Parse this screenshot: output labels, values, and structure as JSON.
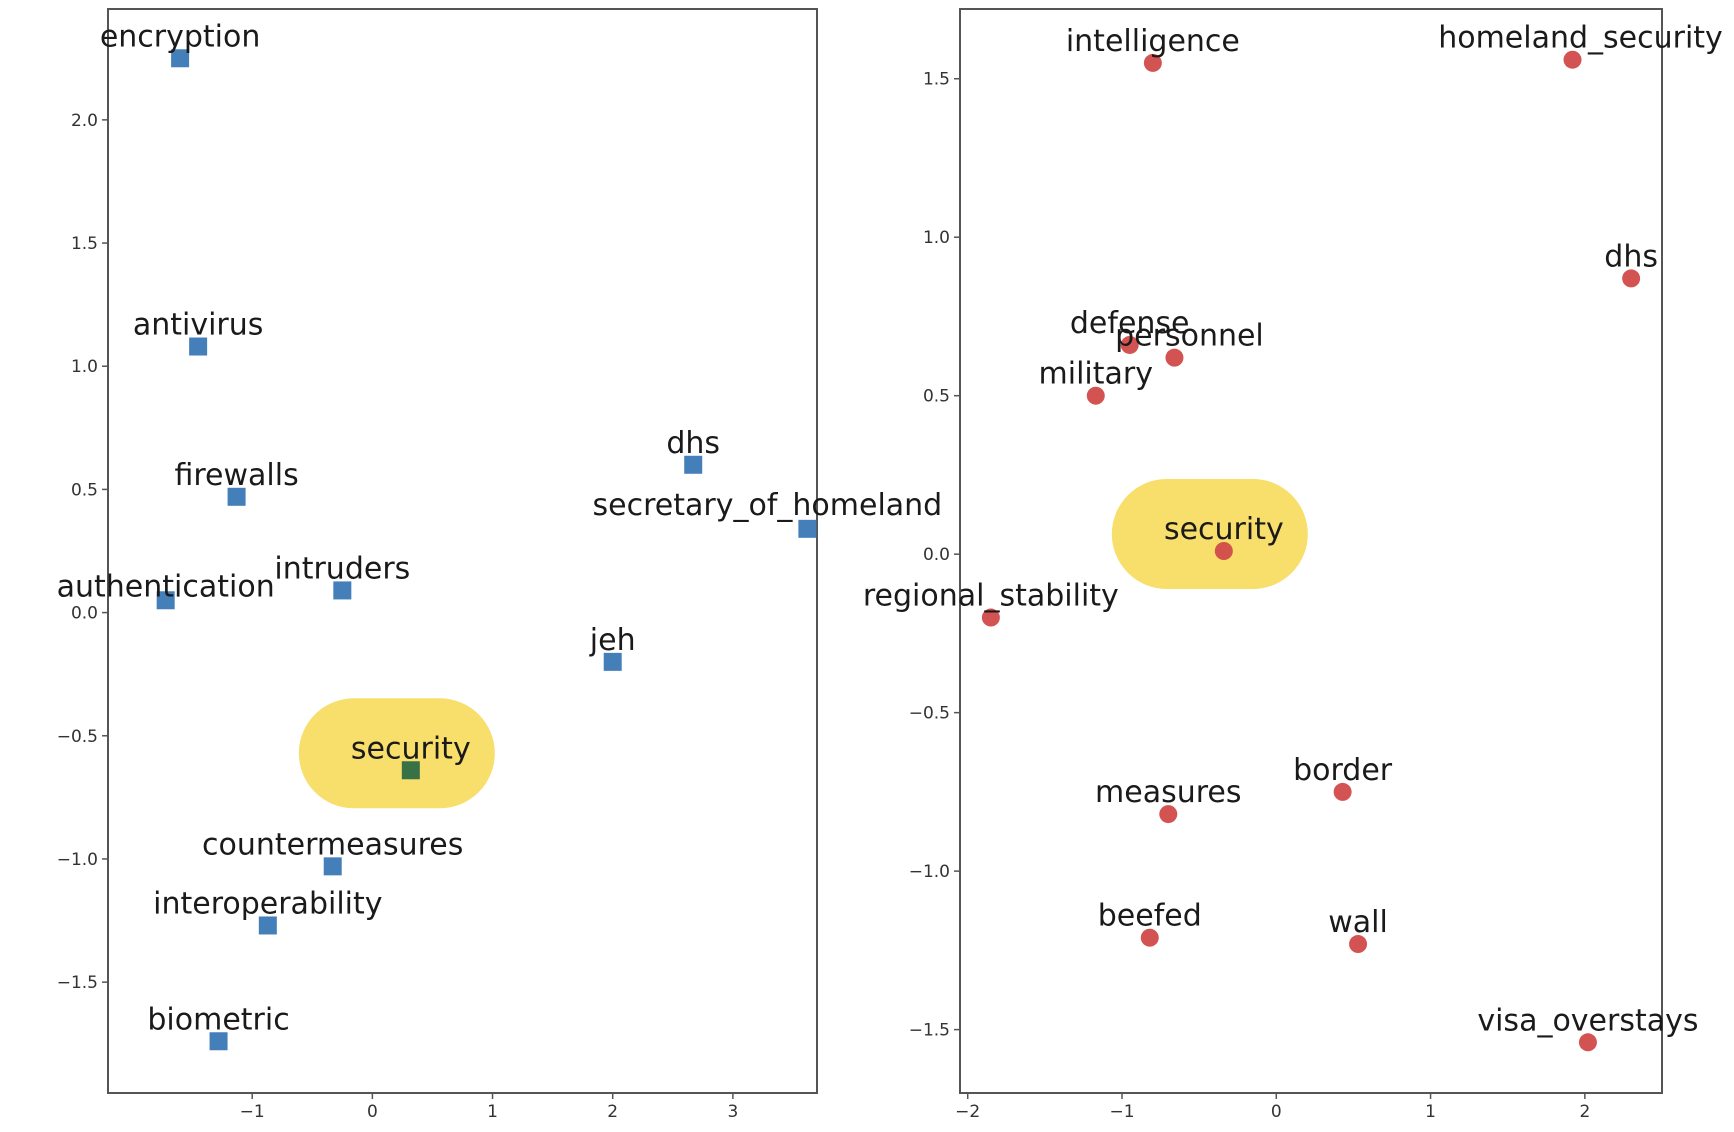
{
  "chart_data": [
    {
      "type": "scatter",
      "title": "",
      "xlabel": "",
      "ylabel": "",
      "xlim": [
        -2.2,
        3.7
      ],
      "ylim": [
        -1.95,
        2.45
      ],
      "xticks": [
        -1,
        0,
        1,
        2,
        3
      ],
      "xtick_labels": [
        "−1",
        "0",
        "1",
        "2",
        "3"
      ],
      "yticks": [
        -1.5,
        -1.0,
        -0.5,
        0.0,
        0.5,
        1.0,
        1.5,
        2.0
      ],
      "ytick_labels": [
        "−1.5",
        "−1.0",
        "−0.5",
        "0.0",
        "0.5",
        "1.0",
        "1.5",
        "2.0"
      ],
      "grid": false,
      "marker": "square",
      "point_color": "#3a78b5",
      "focus_color": "#2e6a45",
      "highlight_color": "#f8de6a",
      "points": [
        {
          "label": "encryption",
          "x": -1.6,
          "y": 2.25
        },
        {
          "label": "antivirus",
          "x": -1.45,
          "y": 1.08
        },
        {
          "label": "firewalls",
          "x": -1.13,
          "y": 0.47
        },
        {
          "label": "authentication",
          "x": -1.72,
          "y": 0.05
        },
        {
          "label": "intruders",
          "x": -0.25,
          "y": 0.09
        },
        {
          "label": "dhs",
          "x": 2.67,
          "y": 0.6
        },
        {
          "label": "secretary_of_homeland",
          "x": 3.62,
          "y": 0.34
        },
        {
          "label": "jeh",
          "x": 2.0,
          "y": -0.2
        },
        {
          "label": "security",
          "x": 0.32,
          "y": -0.64,
          "focus": true
        },
        {
          "label": "countermeasures",
          "x": -0.33,
          "y": -1.03
        },
        {
          "label": "interoperability",
          "x": -0.87,
          "y": -1.27
        },
        {
          "label": "biometric",
          "x": -1.28,
          "y": -1.74
        }
      ]
    },
    {
      "type": "scatter",
      "title": "",
      "xlabel": "",
      "ylabel": "",
      "xlim": [
        -2.05,
        2.5
      ],
      "ylim": [
        -1.7,
        1.72
      ],
      "xticks": [
        -2,
        -1,
        0,
        1,
        2
      ],
      "xtick_labels": [
        "−2",
        "−1",
        "0",
        "1",
        "2"
      ],
      "yticks": [
        -1.5,
        -1.0,
        -0.5,
        0.0,
        0.5,
        1.0,
        1.5
      ],
      "ytick_labels": [
        "−1.5",
        "−1.0",
        "−0.5",
        "0.0",
        "0.5",
        "1.0",
        "1.5"
      ],
      "grid": false,
      "marker": "circle",
      "point_color": "#d14a4a",
      "focus_color": "#d14a4a",
      "highlight_color": "#f8de6a",
      "points": [
        {
          "label": "intelligence",
          "x": -0.8,
          "y": 1.55
        },
        {
          "label": "homeland_security",
          "x": 1.92,
          "y": 1.56
        },
        {
          "label": "dhs",
          "x": 2.3,
          "y": 0.87
        },
        {
          "label": "defense",
          "x": -0.95,
          "y": 0.66
        },
        {
          "label": "personnel",
          "x": -0.66,
          "y": 0.62
        },
        {
          "label": "military",
          "x": -1.17,
          "y": 0.5
        },
        {
          "label": "security",
          "x": -0.34,
          "y": 0.01,
          "focus": true
        },
        {
          "label": "regional_stability",
          "x": -1.85,
          "y": -0.2
        },
        {
          "label": "border",
          "x": 0.43,
          "y": -0.75
        },
        {
          "label": "measures",
          "x": -0.7,
          "y": -0.82
        },
        {
          "label": "beefed",
          "x": -0.82,
          "y": -1.21
        },
        {
          "label": "wall",
          "x": 0.53,
          "y": -1.23
        },
        {
          "label": "visa_overstays",
          "x": 2.02,
          "y": -1.54
        }
      ]
    }
  ]
}
